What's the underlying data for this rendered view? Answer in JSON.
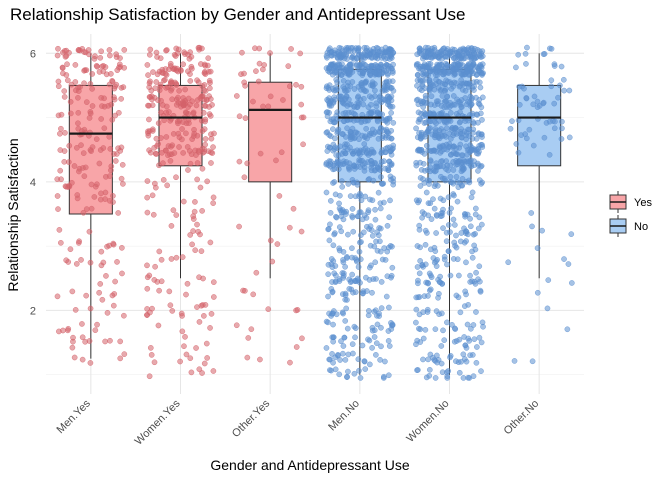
{
  "chart_data": {
    "type": "box",
    "overlay": "jitter-points",
    "title": "Relationship Satisfaction by Gender and Antidepressant Use",
    "xlabel": "Gender and Antidepressant Use",
    "ylabel": "Relationship Satisfaction",
    "categories": [
      "Men.Yes",
      "Women.Yes",
      "Other.Yes",
      "Men.No",
      "Women.No",
      "Other.No"
    ],
    "group_of_category": [
      "Yes",
      "Yes",
      "Yes",
      "No",
      "No",
      "No"
    ],
    "ylim": [
      0.7,
      6.3
    ],
    "yticks": [
      2,
      4,
      6
    ],
    "grid": true,
    "legend": {
      "position": "right",
      "entries": [
        {
          "label": "Yes",
          "fill": "#f8a5a8",
          "point_color": "#d4626a"
        },
        {
          "label": "No",
          "fill": "#a9cdf3",
          "point_color": "#5b8fd0"
        }
      ]
    },
    "boxes": [
      {
        "category": "Men.Yes",
        "whisker_low": 1.25,
        "q1": 3.5,
        "median": 4.75,
        "q3": 5.5,
        "whisker_high": 6.0,
        "n_points": 230,
        "point_range": [
          1.1,
          6.1
        ]
      },
      {
        "category": "Women.Yes",
        "whisker_low": 2.5,
        "q1": 4.25,
        "median": 5.0,
        "q3": 5.5,
        "whisker_high": 6.0,
        "n_points": 330,
        "point_range": [
          0.95,
          6.1
        ]
      },
      {
        "category": "Other.Yes",
        "whisker_low": 2.5,
        "q1": 4.0,
        "median": 5.12,
        "q3": 5.55,
        "whisker_high": 6.0,
        "n_points": 60,
        "point_range": [
          1.0,
          6.1
        ]
      },
      {
        "category": "Men.No",
        "whisker_low": 1.0,
        "q1": 4.0,
        "median": 5.0,
        "q3": 5.75,
        "whisker_high": 6.0,
        "n_points": 900,
        "point_range": [
          0.95,
          6.1
        ]
      },
      {
        "category": "Women.No",
        "whisker_low": 1.0,
        "q1": 4.0,
        "median": 5.0,
        "q3": 5.75,
        "whisker_high": 6.0,
        "n_points": 900,
        "point_range": [
          0.95,
          6.1
        ]
      },
      {
        "category": "Other.No",
        "whisker_low": 2.5,
        "q1": 4.25,
        "median": 5.0,
        "q3": 5.5,
        "whisker_high": 6.0,
        "n_points": 70,
        "point_range": [
          0.9,
          6.1
        ]
      }
    ]
  }
}
